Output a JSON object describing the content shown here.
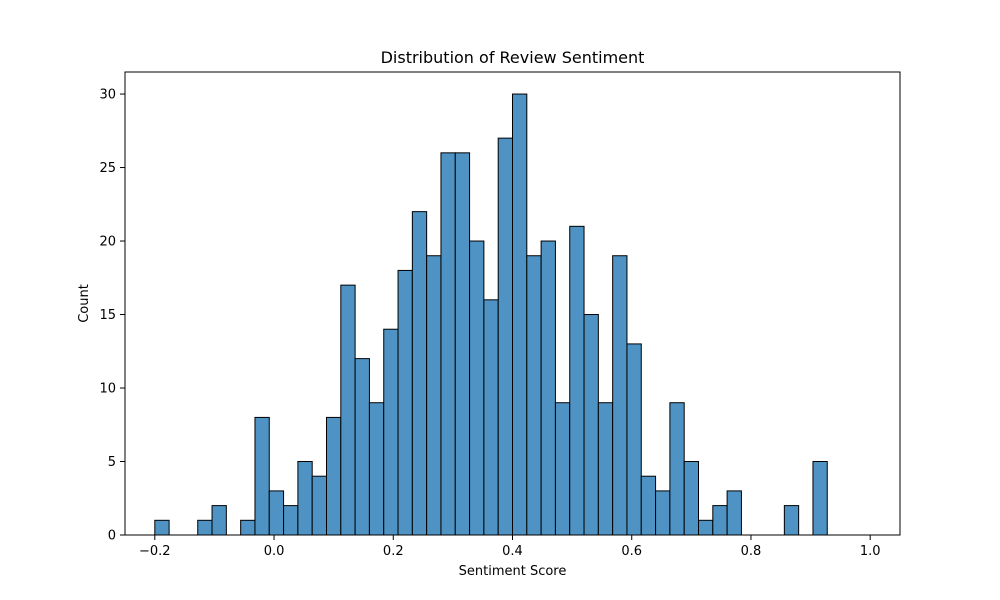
{
  "chart_data": {
    "type": "bar",
    "title": "Distribution of Review Sentiment",
    "xlabel": "Sentiment Score",
    "ylabel": "Count",
    "xlim": [
      -0.25,
      1.05
    ],
    "ylim": [
      0,
      31.5
    ],
    "xticks": [
      -0.2,
      0.0,
      0.2,
      0.4,
      0.6,
      0.8,
      1.0
    ],
    "xtick_labels": [
      "−0.2",
      "0.0",
      "0.2",
      "0.4",
      "0.6",
      "0.8",
      "1.0"
    ],
    "yticks": [
      0,
      5,
      10,
      15,
      20,
      25,
      30
    ],
    "ytick_labels": [
      "0",
      "5",
      "10",
      "15",
      "20",
      "25",
      "30"
    ],
    "bin_start": -0.2,
    "bin_width": 0.024,
    "counts": [
      1,
      0,
      0,
      1,
      2,
      0,
      1,
      8,
      3,
      2,
      5,
      4,
      8,
      17,
      12,
      9,
      14,
      18,
      22,
      19,
      26,
      26,
      20,
      16,
      27,
      30,
      19,
      20,
      9,
      21,
      15,
      9,
      19,
      13,
      4,
      3,
      9,
      5,
      1,
      2,
      3,
      0,
      0,
      0,
      2,
      0,
      5
    ],
    "bar_color": "#4f93c4",
    "edge_color": "#000000",
    "grid": false,
    "legend": "none"
  }
}
